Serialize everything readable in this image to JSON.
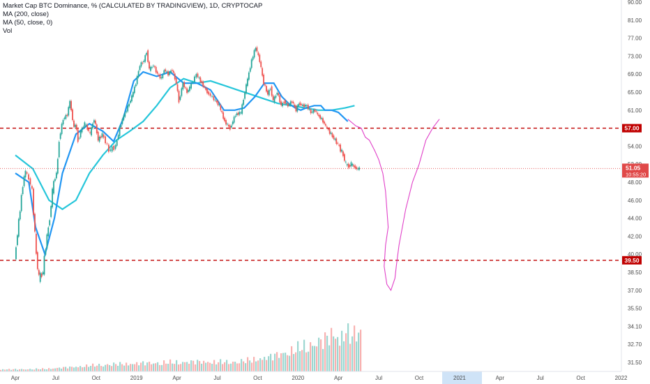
{
  "legend": {
    "title": "Market Cap BTC Dominance, % (CALCULATED BY TRADINGVIEW), 1D, CRYPTOCAP",
    "ma200": "MA (200, close)",
    "ma50": "MA (50, close, 0)",
    "vol": "Vol"
  },
  "colors": {
    "up": "#26a69a",
    "down": "#ef5350",
    "ma50": "#2196f3",
    "ma200": "#26c6da",
    "hline": "#c00000",
    "projection": "#e040c8",
    "last_price": "#e04848",
    "axis_text": "#4a4a4a",
    "highlight": "#cfe3f7"
  },
  "chart_data": {
    "type": "line",
    "symbol": "BTC Dominance %",
    "timeframe": "1D",
    "price_axis_ticks": [
      "90.00",
      "81.00",
      "77.00",
      "73.00",
      "69.00",
      "65.00",
      "61.00",
      "57.00",
      "54.00",
      "52.00",
      "48.00",
      "46.00",
      "44.00",
      "42.00",
      "40.00",
      "38.50",
      "37.00",
      "35.50",
      "34.10",
      "32.70",
      "31.50"
    ],
    "time_axis_ticks": [
      "Apr",
      "Jul",
      "Oct",
      "2019",
      "Apr",
      "Jul",
      "Oct",
      "2020",
      "Apr",
      "Jul",
      "Oct",
      "2021",
      "Apr",
      "Jul",
      "Oct",
      "2022"
    ],
    "price_series": {
      "name": "",
      "x": [
        0,
        0.4,
        0.8,
        1.3,
        1.6,
        1.8,
        2.1,
        2.4,
        2.6,
        2.8,
        3.1,
        3.3,
        3.6,
        3.9,
        4.1,
        4.4,
        4.5,
        4.7,
        5.0,
        5.2,
        5.6,
        5.9,
        6.2,
        6.5,
        7.0,
        7.5,
        7.8,
        8.0,
        8.3,
        8.7,
        9.0,
        9.3,
        9.6,
        9.8,
        10.0,
        10.3,
        10.6,
        10.9,
        11.1,
        11.4,
        11.7,
        12.0,
        12.2,
        12.5,
        12.8,
        13.0,
        13.5,
        13.9,
        14.3,
        14.8,
        15.2,
        15.6,
        16.0,
        16.4,
        16.8,
        17.2,
        17.6,
        17.9,
        18.2,
        18.5,
        18.8,
        19.0,
        19.2,
        19.5,
        19.8,
        20.0,
        20.3,
        20.6,
        20.9,
        21.1,
        21.4,
        21.7,
        22.0,
        22.3,
        22.5,
        22.8,
        23.0,
        23.2,
        23.5,
        23.8,
        24.1,
        24.4,
        24.6,
        24.8,
        25.0,
        25.2,
        25.4,
        25.6
      ],
      "values": [
        39.5,
        45,
        50.5,
        47,
        40,
        38,
        38.5,
        42,
        44,
        47,
        50,
        55,
        59,
        60,
        63,
        57,
        58,
        55,
        57,
        58,
        56,
        59,
        55,
        56,
        53.5,
        54,
        57,
        59,
        61,
        64,
        67,
        71,
        72,
        74,
        70,
        71,
        69,
        68,
        70,
        69,
        70,
        67,
        63,
        67,
        65,
        66,
        69,
        67,
        65,
        63.5,
        62,
        58.5,
        57,
        60,
        60.5,
        66.5,
        72,
        75,
        72,
        67,
        64.5,
        66,
        63,
        65,
        62,
        63,
        62,
        63,
        61,
        62.5,
        62,
        62,
        60.5,
        61,
        60,
        59,
        58,
        57,
        56,
        55,
        54,
        53,
        52,
        51.5,
        52,
        51.5,
        51,
        51.05
      ]
    },
    "ma50_series": {
      "name": "",
      "x": [
        0,
        1,
        1.5,
        2.2,
        2.9,
        3.5,
        4.5,
        5.5,
        6.5,
        7.3,
        8.0,
        8.8,
        9.5,
        10.5,
        11.5,
        12.5,
        13.5,
        14.5,
        15.5,
        16.3,
        17.0,
        17.8,
        18.5,
        19.2,
        19.8,
        20.3,
        20.8,
        21.2,
        21.6,
        22.2,
        22.7,
        23.0,
        23.5,
        24.0,
        24.7
      ],
      "values": [
        50,
        48,
        43,
        40,
        44,
        50,
        56,
        58,
        56.5,
        54.8,
        59,
        67.5,
        69.5,
        68.5,
        69.5,
        67,
        67,
        65.5,
        61,
        61,
        61.5,
        64,
        67,
        67,
        64,
        62.5,
        61.5,
        61,
        61.5,
        62,
        62,
        61,
        61,
        60.5,
        58.5
      ]
    },
    "ma200_series": {
      "name": "",
      "x": [
        0,
        1.3,
        2.5,
        3.5,
        4.5,
        5.5,
        6.5,
        7.5,
        8.5,
        9.5,
        10.5,
        11.5,
        12.5,
        13.5,
        14.5,
        15.5,
        16.5,
        17.5,
        18.5,
        19.5,
        20.5,
        21.5,
        22.5,
        23.5,
        24.5,
        25.2
      ],
      "values": [
        53,
        51,
        46,
        45,
        46,
        50,
        53,
        55,
        56.5,
        58.5,
        62,
        66,
        68,
        67,
        67.5,
        66.5,
        65.5,
        64.5,
        63.5,
        62.5,
        62,
        61.5,
        61,
        61,
        61.5,
        62
      ]
    },
    "volume": {
      "name": "",
      "x": [
        0,
        2,
        4,
        6,
        8,
        10,
        12,
        14,
        16,
        17,
        18,
        19,
        19.5,
        20,
        20.5,
        21,
        21.5,
        22,
        22.5,
        23,
        23.5,
        24,
        24.5,
        25,
        25.4,
        25.6
      ],
      "values": [
        0.5,
        0.6,
        1,
        1.5,
        1.8,
        2,
        2.2,
        2.3,
        2.2,
        2.5,
        3,
        3.5,
        4,
        4.5,
        5,
        5.5,
        6,
        6.5,
        7,
        7.5,
        9,
        8,
        9.5,
        8,
        10,
        9
      ]
    },
    "horizontal_levels": [
      {
        "price": 57.0,
        "label": "57.00"
      },
      {
        "price": 39.5,
        "label": "39.50"
      }
    ],
    "last_price": {
      "price": 51.05,
      "label": "51.05",
      "countdown": "10:55:20"
    },
    "projection_path": {
      "x": [
        24.7,
        25.3,
        25.7,
        26.0,
        26.3,
        26.7,
        27.0,
        27.3,
        27.5,
        27.7,
        27.5,
        27.4,
        27.6,
        27.9,
        28.2,
        28.3,
        28.5,
        29.0,
        29.5,
        30.0,
        30.5,
        31.0,
        31.5
      ],
      "values": [
        59,
        57.5,
        57,
        55.5,
        55,
        53.5,
        52.5,
        50,
        47,
        43,
        41,
        39,
        37.5,
        37,
        38,
        39,
        41,
        45,
        48,
        52,
        55,
        57,
        59
      ]
    }
  }
}
